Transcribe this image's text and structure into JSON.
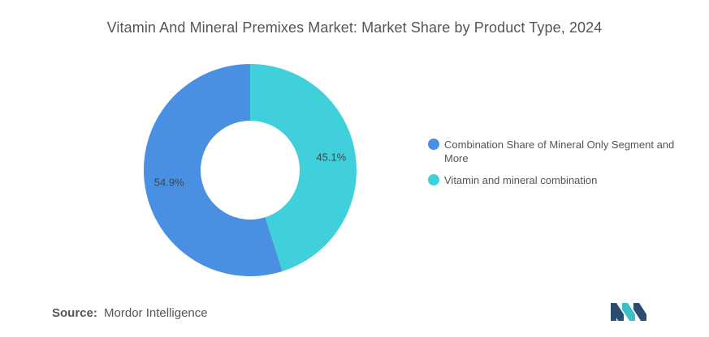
{
  "title": "Vitamin And Mineral Premixes Market: Market Share by Product Type, 2024",
  "source": {
    "label": "Source:",
    "value": "Mordor Intelligence"
  },
  "colors": {
    "series_1": "#4a90e2",
    "series_2": "#40d0dc",
    "logo_dark": "#2b4b6f",
    "logo_teal": "#3cc0c8"
  },
  "logo_icon": "mordor-intelligence-logo",
  "chart_data": {
    "type": "pie",
    "donut": true,
    "title": "Vitamin And Mineral Premixes Market: Market Share by Product Type, 2024",
    "legend_position": "right",
    "slices": [
      {
        "name": "Vitamin and mineral combination",
        "value": 45.1,
        "label": "45.1%",
        "color": "#40d0dc"
      },
      {
        "name": "Combination Share of Mineral Only Segment and More",
        "value": 54.9,
        "label": "54.9%",
        "color": "#4a90e2"
      }
    ],
    "legend": [
      {
        "label": "Combination Share of Mineral Only Segment and More",
        "color": "#4a90e2"
      },
      {
        "label": "Vitamin and mineral combination",
        "color": "#40d0dc"
      }
    ]
  }
}
